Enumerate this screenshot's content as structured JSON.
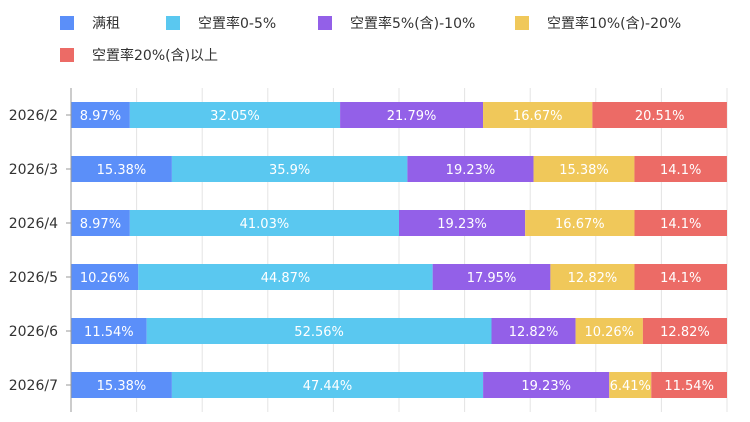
{
  "chart_data": {
    "type": "bar",
    "orientation": "horizontal",
    "stacked": true,
    "normalized": true,
    "categories": [
      "2026/2",
      "2026/3",
      "2026/4",
      "2026/5",
      "2026/6",
      "2026/7"
    ],
    "series": [
      {
        "name": "满租",
        "color": "#5B8FF9",
        "values": [
          8.97,
          15.38,
          8.97,
          10.26,
          11.54,
          15.38
        ]
      },
      {
        "name": "空置率0-5%",
        "color": "#5AC8F0",
        "values": [
          32.05,
          35.9,
          41.03,
          44.87,
          52.56,
          47.44
        ]
      },
      {
        "name": "空置率5%(含)-10%",
        "color": "#9360E8",
        "values": [
          21.79,
          19.23,
          19.23,
          17.95,
          12.82,
          19.23
        ]
      },
      {
        "name": "空置率10%(含)-20%",
        "color": "#F0C85A",
        "values": [
          16.67,
          15.38,
          16.67,
          12.82,
          10.26,
          6.41
        ]
      },
      {
        "name": "空置率20%(含)以上",
        "color": "#EC6B66",
        "values": [
          20.51,
          14.1,
          14.1,
          14.1,
          12.82,
          11.54
        ]
      }
    ],
    "data_label_suffix": "%",
    "xlim": [
      0,
      100
    ],
    "grid": true,
    "legend_position": "top-left"
  }
}
